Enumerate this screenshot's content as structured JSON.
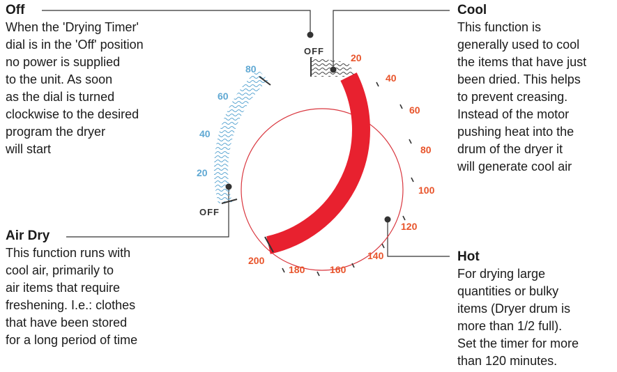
{
  "callouts": {
    "off": {
      "title": "Off",
      "body": "When the 'Drying Timer'\ndial is in the 'Off' position\nno power is supplied\nto the unit. As soon\nas the dial is turned\nclockwise to the desired\nprogram the dryer\nwill start"
    },
    "cool": {
      "title": "Cool",
      "body": "This function is\ngenerally used to cool\nthe items that have just\nbeen dried. This helps\nto prevent creasing.\nInstead of the motor\npushing heat into the\ndrum of the dryer it\nwill generate cool air"
    },
    "air_dry": {
      "title": "Air Dry",
      "body": "This function runs with\ncool air, primarily to\nair items that require\nfreshening. I.e.: clothes\nthat have been stored\nfor a long period of time"
    },
    "hot": {
      "title": "Hot",
      "body": "For drying large\nquantities or bulky\nitems (Dryer drum is\nmore than 1/2 full).\nSet the timer for more\nthan 120 minutes."
    }
  },
  "dial": {
    "off_top_label": "OFF",
    "off_left_label": "OFF",
    "timed_ticks": [
      "20",
      "40",
      "60",
      "80",
      "100",
      "120",
      "140",
      "160",
      "180",
      "200"
    ],
    "air_dry_ticks": [
      "20",
      "40",
      "60",
      "80"
    ],
    "colors": {
      "hot": "#e8212f",
      "air": "#5fa8d3",
      "ring": "#d9363e",
      "timed_label": "#e8542b"
    }
  }
}
